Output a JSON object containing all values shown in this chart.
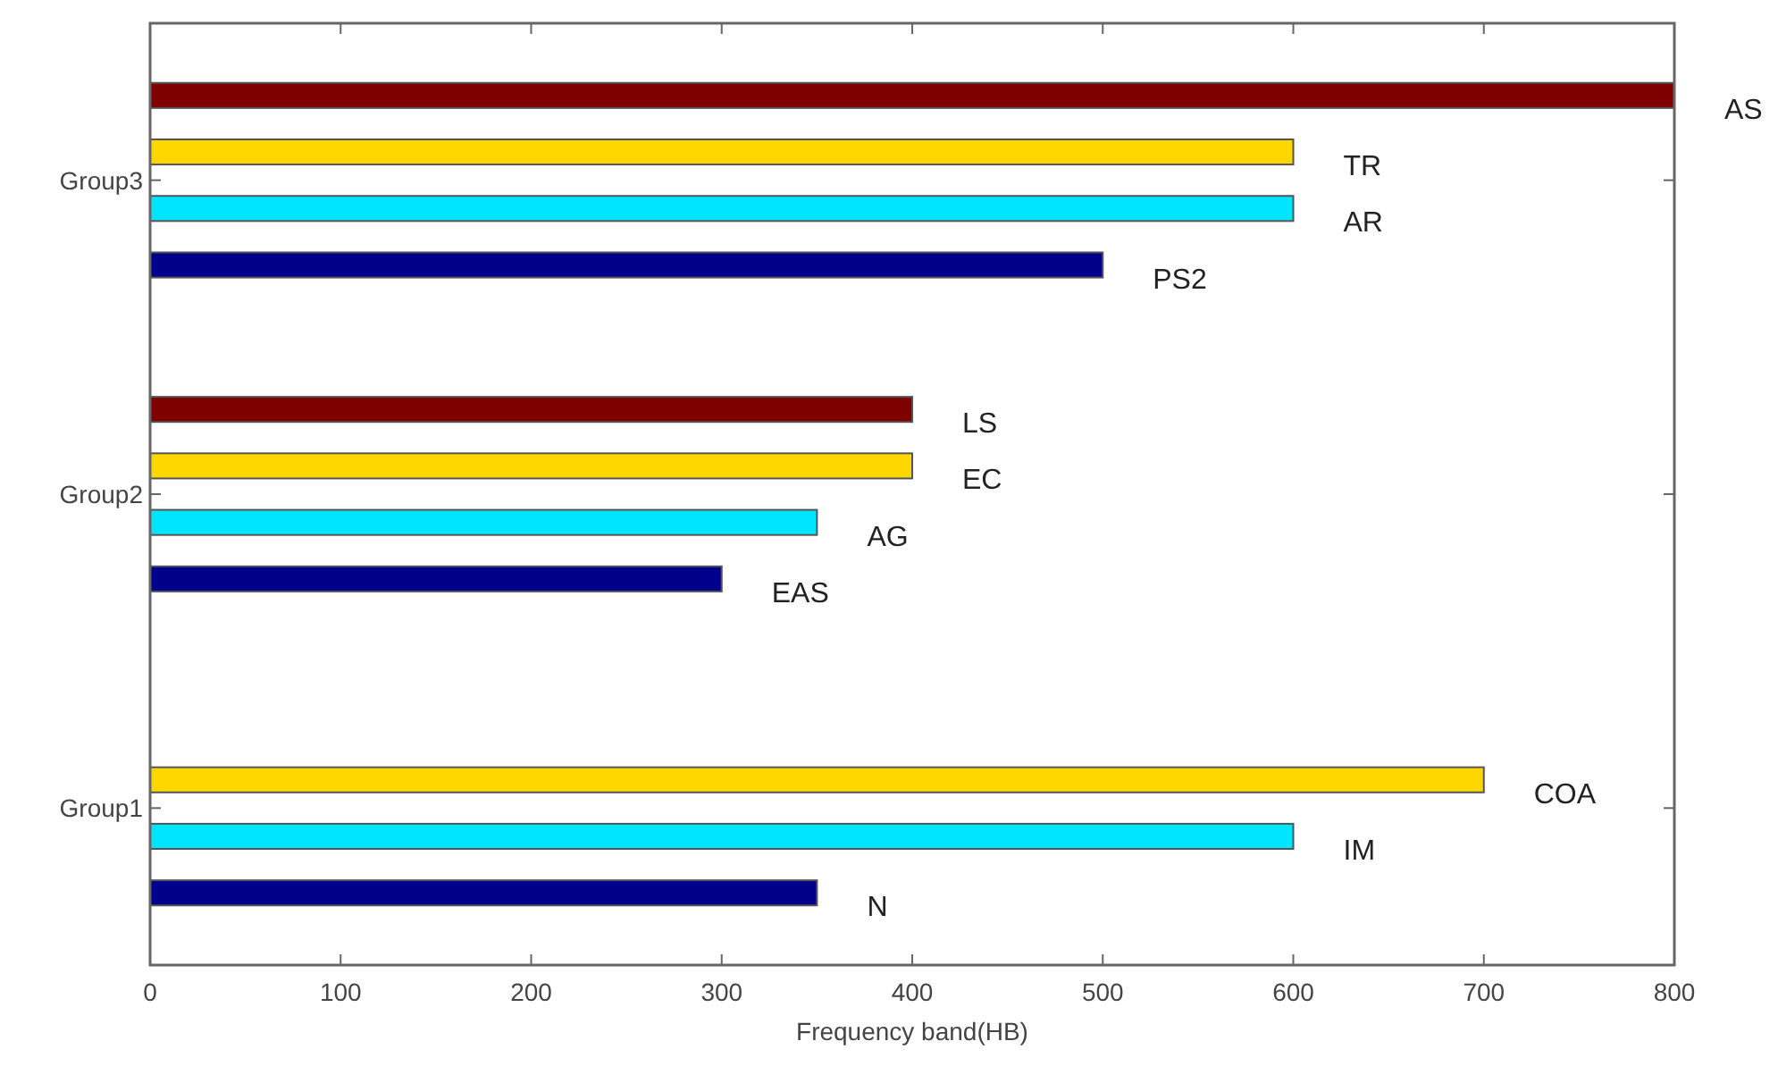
{
  "chart_data": {
    "type": "bar",
    "orientation": "horizontal",
    "xlabel": "Frequency band(HB)",
    "categories": [
      "Group3",
      "Group2",
      "Group1"
    ],
    "series": [
      {
        "color": "#800000",
        "values": [
          800,
          400,
          null
        ],
        "value_labels": [
          "AS",
          "LS",
          null
        ]
      },
      {
        "color": "#ffd700",
        "values": [
          600,
          400,
          700
        ],
        "value_labels": [
          "TR",
          "EC",
          "COA"
        ]
      },
      {
        "color": "#00e5ff",
        "values": [
          600,
          350,
          600
        ],
        "value_labels": [
          "AR",
          "AG",
          "IM"
        ]
      },
      {
        "color": "#00008b",
        "values": [
          500,
          300,
          350
        ],
        "value_labels": [
          "PS2",
          "EAS",
          "N"
        ]
      }
    ],
    "xlim": [
      0,
      800
    ],
    "xticks": [
      0,
      100,
      200,
      300,
      400,
      500,
      600,
      700,
      800
    ],
    "grid": false
  }
}
